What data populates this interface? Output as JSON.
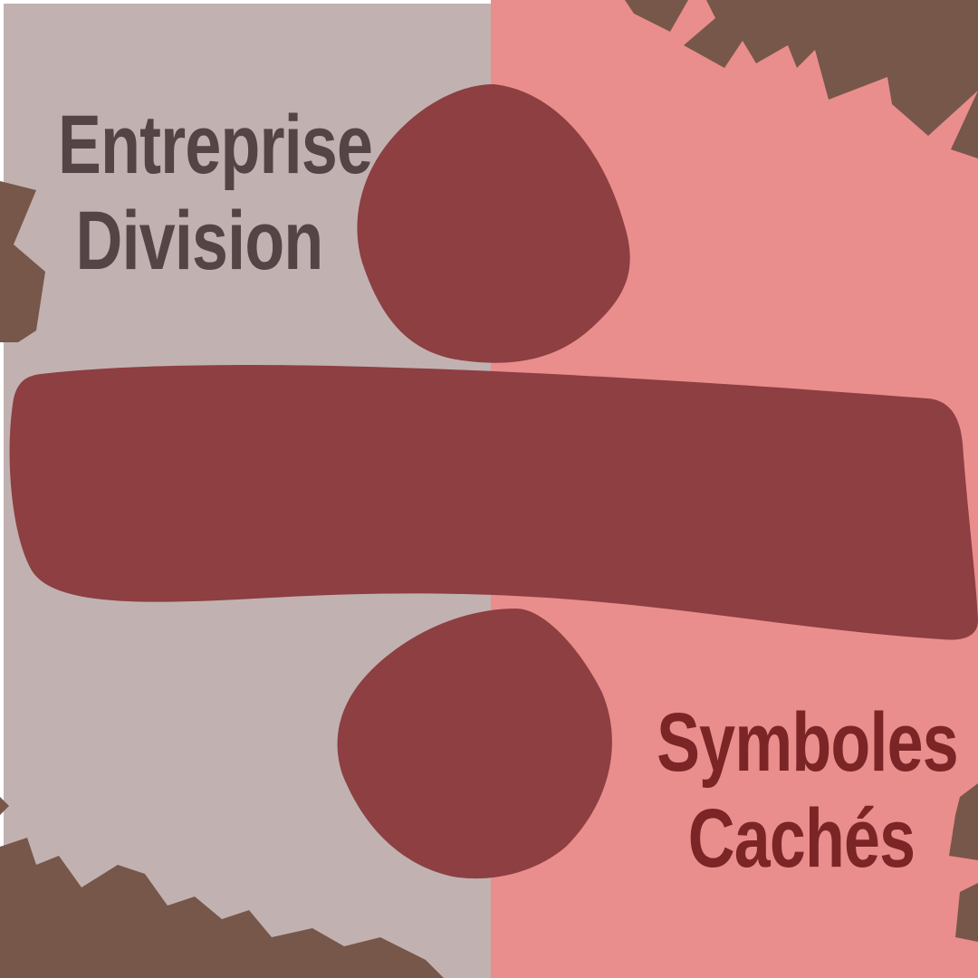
{
  "colors": {
    "left_background": "#c1b2b1",
    "right_background": "#e98e8c",
    "divide_symbol": "#8d3f42",
    "scribbles": "#77574a",
    "left_text": "#554446",
    "right_text": "#7b2527"
  },
  "titles": {
    "left": {
      "line1": "Entreprise",
      "line2": "Division"
    },
    "right": {
      "line1": "Symboles",
      "line2": "Cachés"
    }
  },
  "icons": {
    "main": "division-sign-icon"
  }
}
